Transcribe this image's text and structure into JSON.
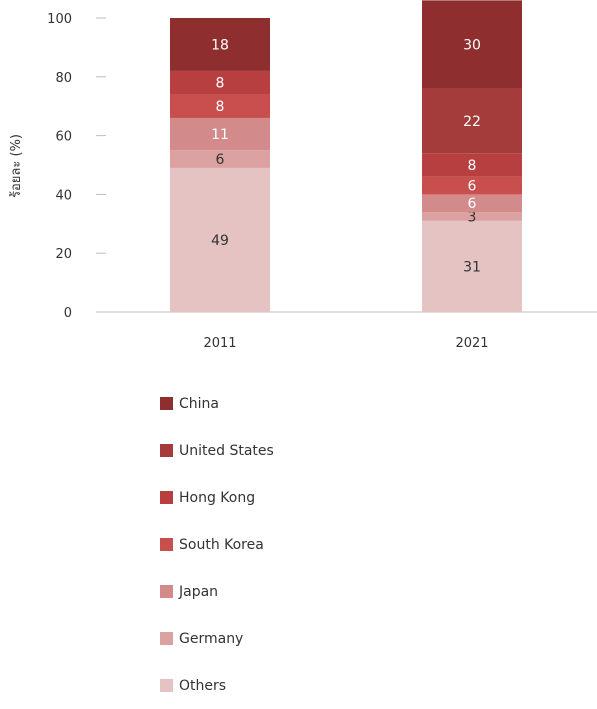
{
  "chart_data": {
    "type": "bar",
    "stacked": true,
    "categories": [
      "2011",
      "2021"
    ],
    "ylabel": "ร้อยละ (%)",
    "ylim": [
      0,
      100
    ],
    "yticks": [
      0,
      20,
      40,
      60,
      80,
      100
    ],
    "grid": false,
    "legend_position": "bottom",
    "series": [
      {
        "name": "Others",
        "color": "#e6c3c3",
        "values": [
          49,
          31
        ]
      },
      {
        "name": "Germany",
        "color": "#dca2a2",
        "values": [
          6,
          3
        ]
      },
      {
        "name": "Japan",
        "color": "#d28a8a",
        "values": [
          11,
          6
        ]
      },
      {
        "name": "South Korea",
        "color": "#c94e4e",
        "values": [
          8,
          6
        ]
      },
      {
        "name": "Hong Kong",
        "color": "#b83f3f",
        "values": [
          8,
          8
        ]
      },
      {
        "name": "United States",
        "color": "#a53c3c",
        "values": [
          0,
          22
        ]
      },
      {
        "name": "China",
        "color": "#8e2e2e",
        "values": [
          18,
          30
        ]
      }
    ],
    "legend_order": [
      "China",
      "United States",
      "Hong Kong",
      "South Korea",
      "Japan",
      "Germany",
      "Others"
    ]
  }
}
